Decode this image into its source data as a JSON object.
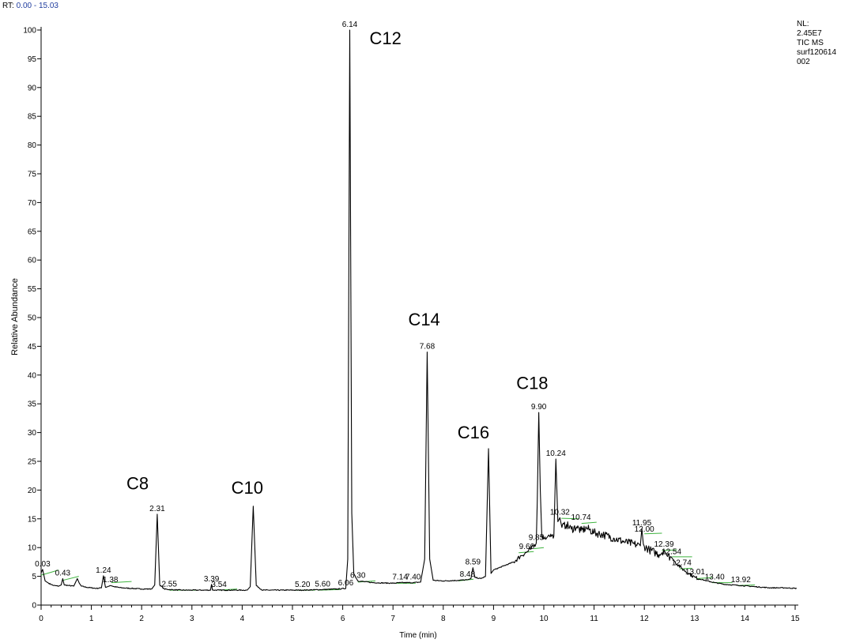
{
  "header": {
    "rt_prefix": "RT:",
    "rt_range": "0.00 - 15.03"
  },
  "info": {
    "lines": [
      "NL:",
      "2.45E7",
      "TIC  MS",
      "surf120614",
      "002"
    ]
  },
  "colors": {
    "trace": "#000000",
    "baseline_marks": "#3fb33f",
    "rt_range": "#1f3c9e"
  },
  "chart_data": {
    "type": "line",
    "title": "",
    "xlabel": "Time (min)",
    "ylabel": "Relative Abundance",
    "xlim": [
      0,
      15
    ],
    "ylim": [
      0,
      100
    ],
    "x_ticks": [
      0,
      1,
      2,
      3,
      4,
      5,
      6,
      7,
      8,
      9,
      10,
      11,
      12,
      13,
      14,
      15
    ],
    "y_ticks": [
      0,
      5,
      10,
      15,
      20,
      25,
      30,
      35,
      40,
      45,
      50,
      55,
      60,
      65,
      70,
      75,
      80,
      85,
      90,
      95,
      100
    ],
    "x_minor_step": 0.2,
    "series": [
      {
        "points": [
          [
            0,
            5.6
          ],
          [
            0.03,
            6.2
          ],
          [
            0.08,
            4.2
          ],
          [
            0.15,
            3.8
          ],
          [
            0.25,
            3.4
          ],
          [
            0.35,
            3.3
          ],
          [
            0.4,
            3.5
          ],
          [
            0.43,
            4.6
          ],
          [
            0.46,
            3.5
          ],
          [
            0.55,
            3.4
          ],
          [
            0.65,
            3.3
          ],
          [
            0.72,
            4.6
          ],
          [
            0.76,
            3.8
          ],
          [
            0.8,
            3.3
          ],
          [
            0.9,
            3.1
          ],
          [
            1.0,
            3.0
          ],
          [
            1.1,
            2.9
          ],
          [
            1.2,
            3.0
          ],
          [
            1.24,
            5.1
          ],
          [
            1.28,
            3.1
          ],
          [
            1.38,
            3.4
          ],
          [
            1.45,
            3.2
          ],
          [
            1.6,
            3.0
          ],
          [
            1.8,
            2.9
          ],
          [
            2.0,
            2.8
          ],
          [
            2.2,
            2.8
          ],
          [
            2.26,
            3.5
          ],
          [
            2.31,
            15.8
          ],
          [
            2.36,
            3.5
          ],
          [
            2.45,
            2.8
          ],
          [
            2.55,
            2.7
          ],
          [
            2.8,
            2.6
          ],
          [
            3.0,
            2.6
          ],
          [
            3.2,
            2.6
          ],
          [
            3.37,
            2.6
          ],
          [
            3.39,
            3.6
          ],
          [
            3.41,
            2.6
          ],
          [
            3.54,
            2.6
          ],
          [
            3.8,
            2.6
          ],
          [
            4.1,
            2.6
          ],
          [
            4.16,
            3.2
          ],
          [
            4.22,
            17.2
          ],
          [
            4.28,
            3.4
          ],
          [
            4.4,
            2.6
          ],
          [
            4.8,
            2.6
          ],
          [
            5.2,
            2.6
          ],
          [
            5.6,
            2.7
          ],
          [
            5.9,
            2.8
          ],
          [
            6.06,
            2.9
          ],
          [
            6.1,
            8.0
          ],
          [
            6.14,
            100.0
          ],
          [
            6.18,
            16.0
          ],
          [
            6.22,
            5.5
          ],
          [
            6.3,
            4.2
          ],
          [
            6.6,
            3.9
          ],
          [
            7.0,
            3.8
          ],
          [
            7.14,
            3.9
          ],
          [
            7.4,
            3.9
          ],
          [
            7.55,
            4.0
          ],
          [
            7.63,
            8.0
          ],
          [
            7.68,
            44.0
          ],
          [
            7.73,
            8.0
          ],
          [
            7.8,
            4.3
          ],
          [
            8.0,
            4.2
          ],
          [
            8.3,
            4.3
          ],
          [
            8.48,
            4.4
          ],
          [
            8.55,
            4.6
          ],
          [
            8.59,
            6.5
          ],
          [
            8.63,
            4.8
          ],
          [
            8.75,
            4.6
          ],
          [
            8.84,
            5.0
          ],
          [
            8.9,
            27.2
          ],
          [
            8.95,
            5.5
          ],
          [
            9.0,
            6.1
          ],
          [
            9.2,
            6.8
          ],
          [
            9.4,
            7.5
          ],
          [
            9.55,
            8.6
          ],
          [
            9.66,
            9.2
          ],
          [
            9.75,
            9.8
          ],
          [
            9.85,
            10.8
          ],
          [
            9.87,
            18.0
          ],
          [
            9.9,
            33.5
          ],
          [
            9.93,
            20.0
          ],
          [
            9.96,
            12.0
          ],
          [
            10.05,
            11.6
          ],
          [
            10.1,
            12.2
          ],
          [
            10.2,
            12.0
          ],
          [
            10.24,
            25.4
          ],
          [
            10.28,
            14.5
          ],
          [
            10.32,
            15.2
          ],
          [
            10.36,
            13.5
          ],
          [
            10.45,
            14.0
          ],
          [
            10.55,
            13.2
          ],
          [
            10.65,
            13.6
          ],
          [
            10.74,
            12.9
          ],
          [
            10.85,
            13.4
          ],
          [
            11.0,
            12.6
          ],
          [
            11.2,
            12.2
          ],
          [
            11.4,
            11.6
          ],
          [
            11.6,
            11.0
          ],
          [
            11.8,
            10.6
          ],
          [
            11.92,
            10.3
          ],
          [
            11.95,
            13.3
          ],
          [
            11.98,
            10.6
          ],
          [
            12.0,
            10.2
          ],
          [
            12.1,
            9.6
          ],
          [
            12.2,
            9.2
          ],
          [
            12.3,
            8.8
          ],
          [
            12.39,
            9.6
          ],
          [
            12.45,
            8.6
          ],
          [
            12.54,
            8.3
          ],
          [
            12.6,
            7.6
          ],
          [
            12.74,
            6.4
          ],
          [
            12.9,
            5.4
          ],
          [
            13.01,
            4.8
          ],
          [
            13.2,
            4.3
          ],
          [
            13.4,
            3.9
          ],
          [
            13.6,
            3.6
          ],
          [
            13.92,
            3.4
          ],
          [
            14.2,
            3.2
          ],
          [
            14.5,
            3.0
          ],
          [
            14.8,
            3.0
          ],
          [
            15.03,
            2.9
          ]
        ]
      }
    ],
    "noise": [
      [
        9.4,
        10.2,
        0.4
      ],
      [
        10.3,
        12.6,
        0.7
      ],
      [
        12.6,
        13.1,
        0.3
      ]
    ],
    "peak_labels": [
      {
        "rt": "0.03",
        "x": 0.03,
        "y": 6.2
      },
      {
        "rt": "0.43",
        "x": 0.43,
        "y": 4.6
      },
      {
        "rt": "1.24",
        "x": 1.24,
        "y": 5.1
      },
      {
        "rt": "1.38",
        "x": 1.38,
        "y": 3.4
      },
      {
        "rt": "2.31",
        "x": 2.31,
        "y": 15.8
      },
      {
        "rt": "2.55",
        "x": 2.55,
        "y": 2.7
      },
      {
        "rt": "3.39",
        "x": 3.39,
        "y": 3.6
      },
      {
        "rt": "3.54",
        "x": 3.54,
        "y": 2.6
      },
      {
        "rt": "5.20",
        "x": 5.2,
        "y": 2.6
      },
      {
        "rt": "5.60",
        "x": 5.6,
        "y": 2.7
      },
      {
        "rt": "6.06",
        "x": 6.06,
        "y": 2.9
      },
      {
        "rt": "6.14",
        "x": 6.14,
        "y": 100.0
      },
      {
        "rt": "6.30",
        "x": 6.3,
        "y": 4.2
      },
      {
        "rt": "7.14",
        "x": 7.14,
        "y": 3.9
      },
      {
        "rt": "7.40",
        "x": 7.4,
        "y": 3.9
      },
      {
        "rt": "7.68",
        "x": 7.68,
        "y": 44.0
      },
      {
        "rt": "8.48",
        "x": 8.48,
        "y": 4.4
      },
      {
        "rt": "8.59",
        "x": 8.59,
        "y": 6.5
      },
      {
        "rt": "9.66",
        "x": 9.66,
        "y": 9.2
      },
      {
        "rt": "9.85",
        "x": 9.85,
        "y": 10.8
      },
      {
        "rt": "9.90",
        "x": 9.9,
        "y": 33.5
      },
      {
        "rt": "10.24",
        "x": 10.24,
        "y": 25.4
      },
      {
        "rt": "10.32",
        "x": 10.32,
        "y": 15.2
      },
      {
        "rt": "10.74",
        "x": 10.74,
        "y": 14.3
      },
      {
        "rt": "11.95",
        "x": 11.95,
        "y": 13.3
      },
      {
        "rt": "12.00",
        "x": 12.0,
        "y": 12.2
      },
      {
        "rt": "12.39",
        "x": 12.39,
        "y": 9.6
      },
      {
        "rt": "12.54",
        "x": 12.54,
        "y": 8.3
      },
      {
        "rt": "12.74",
        "x": 12.74,
        "y": 6.4
      },
      {
        "rt": "13.01",
        "x": 13.01,
        "y": 4.8
      },
      {
        "rt": "13.40",
        "x": 13.4,
        "y": 3.9
      },
      {
        "rt": "13.92",
        "x": 13.92,
        "y": 3.4
      }
    ],
    "baseline_segments": [
      [
        0.0,
        5.2,
        0.35,
        6.1
      ],
      [
        0.43,
        4.3,
        0.75,
        5.0
      ],
      [
        1.4,
        3.9,
        1.8,
        4.1
      ],
      [
        2.55,
        2.6,
        3.1,
        2.6
      ],
      [
        3.54,
        2.6,
        3.9,
        2.8
      ],
      [
        5.05,
        2.6,
        5.45,
        2.6
      ],
      [
        5.5,
        2.6,
        5.95,
        2.7
      ],
      [
        6.3,
        4.0,
        6.65,
        4.2
      ],
      [
        7.05,
        3.8,
        7.45,
        3.8
      ],
      [
        8.3,
        4.2,
        8.6,
        4.5
      ],
      [
        9.5,
        9.1,
        9.8,
        9.3
      ],
      [
        9.8,
        9.8,
        10.0,
        10.0
      ],
      [
        10.35,
        15.1,
        10.7,
        15.0
      ],
      [
        10.75,
        14.2,
        11.05,
        14.4
      ],
      [
        12.0,
        12.4,
        12.35,
        12.5
      ],
      [
        12.35,
        9.5,
        12.65,
        9.6
      ],
      [
        12.55,
        8.4,
        12.95,
        8.4
      ],
      [
        12.7,
        6.3,
        12.95,
        6.4
      ],
      [
        13.05,
        4.6,
        13.35,
        4.8
      ],
      [
        13.35,
        3.9,
        13.75,
        3.9
      ],
      [
        13.85,
        3.4,
        14.2,
        3.5
      ]
    ],
    "annotations": [
      {
        "text": "C8",
        "x": 1.92,
        "y": 20.1
      },
      {
        "text": "C10",
        "x": 4.1,
        "y": 19.4
      },
      {
        "text": "C12",
        "x": 6.85,
        "y": 97.5
      },
      {
        "text": "C14",
        "x": 7.62,
        "y": 48.6
      },
      {
        "text": "C16",
        "x": 8.6,
        "y": 29.0
      },
      {
        "text": "C18",
        "x": 9.77,
        "y": 37.6
      }
    ]
  }
}
